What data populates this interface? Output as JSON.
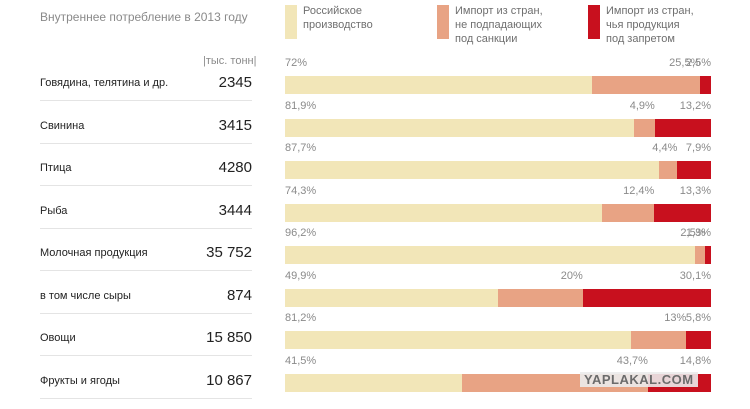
{
  "colors": {
    "domestic": "#f2e6b8",
    "import_allowed": "#e8a384",
    "import_banned": "#c8101e"
  },
  "chart_data": {
    "type": "bar",
    "orientation": "horizontal",
    "stacked": true,
    "normalized": true,
    "title": "Внутреннее потребление в 2013 году",
    "unit_label": "|тыс. тонн|",
    "legend": [
      "Российское производство",
      "Импорт из стран, не подпадающих под санкции",
      "Импорт из стран, чья продукция под запретом"
    ],
    "legend_lines": [
      [
        "Российское",
        "производство"
      ],
      [
        "Импорт из стран,",
        "не подпадающих",
        "под санкции"
      ],
      [
        "Импорт из стран,",
        "чья продукция",
        "под запретом"
      ]
    ],
    "categories": [
      "Говядина, телятина и др.",
      "Свинина",
      "Птица",
      "Рыба",
      "Молочная продукция",
      "в том числе сыры",
      "Овощи",
      "Фрукты и ягоды"
    ],
    "totals": [
      "2345",
      "3415",
      "4280",
      "3444",
      "35 752",
      "874",
      "15 850",
      "10 867"
    ],
    "series": [
      {
        "name": "Российское производство",
        "values": [
          72,
          81.9,
          87.7,
          74.3,
          96.2,
          49.9,
          81.2,
          41.5
        ],
        "labels": [
          "72%",
          "81,9%",
          "87,7%",
          "74,3%",
          "96,2%",
          "49,9%",
          "81,2%",
          "41,5%"
        ]
      },
      {
        "name": "Импорт из стран, не подпадающих под санкции",
        "values": [
          25.5,
          4.9,
          4.4,
          12.4,
          2.5,
          20,
          13,
          43.7
        ],
        "labels": [
          "25,5%",
          "4,9%",
          "4,4%",
          "12,4%",
          "2,5%",
          "20%",
          "13%",
          "43,7%"
        ]
      },
      {
        "name": "Импорт из стран, чья продукция под запретом",
        "values": [
          2.5,
          13.2,
          7.9,
          13.3,
          1.3,
          30.1,
          5.8,
          14.8
        ],
        "labels": [
          "2,5%",
          "13,2%",
          "7,9%",
          "13,3%",
          "1,3%",
          "30,1%",
          "5,8%",
          "14,8%"
        ]
      }
    ],
    "xlim": [
      0,
      100
    ]
  },
  "watermark": "YAPLAKAL.COM"
}
